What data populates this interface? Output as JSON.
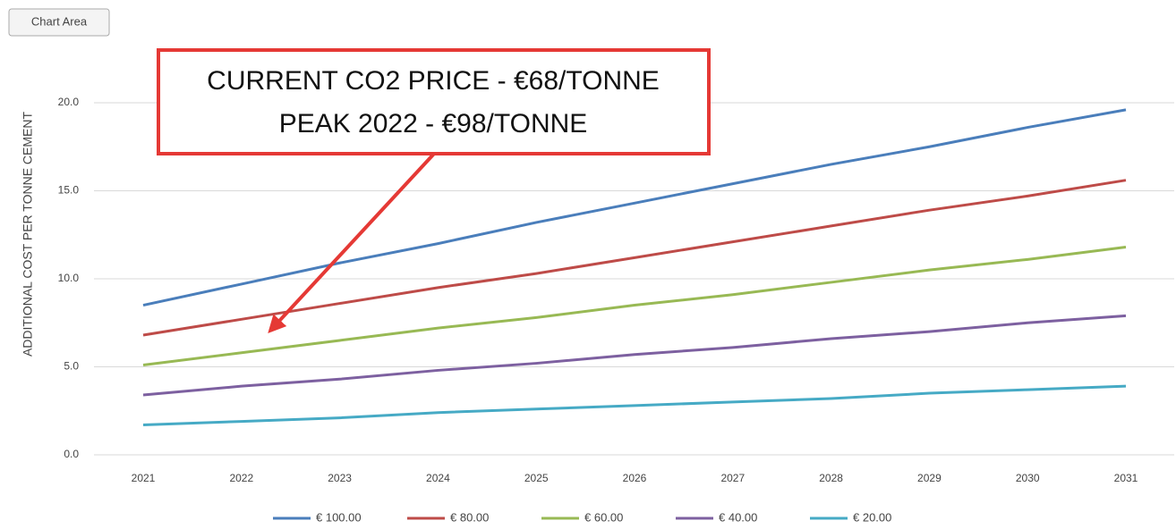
{
  "ui_label": "Chart Area",
  "chart_data": {
    "type": "line",
    "y_label": "ADDITIONAL COST PER TONNE CEMENT",
    "annotation": [
      "CURRENT CO2 PRICE - €68/TONNE",
      "PEAK 2022 - €98/TONNE"
    ],
    "categories": [
      "2021",
      "2022",
      "2023",
      "2024",
      "2025",
      "2026",
      "2027",
      "2028",
      "2029",
      "2030",
      "2031"
    ],
    "series": [
      {
        "name": "€ 100.00",
        "color": "#4a7ebb",
        "values": [
          8.5,
          9.7,
          10.9,
          12.0,
          13.2,
          14.3,
          15.4,
          16.5,
          17.5,
          18.6,
          19.6
        ]
      },
      {
        "name": "€ 80.00",
        "color": "#be4b48",
        "values": [
          6.8,
          7.7,
          8.6,
          9.5,
          10.3,
          11.2,
          12.1,
          13.0,
          13.9,
          14.7,
          15.6
        ]
      },
      {
        "name": "€ 60.00",
        "color": "#98b954",
        "values": [
          5.1,
          5.8,
          6.5,
          7.2,
          7.8,
          8.5,
          9.1,
          9.8,
          10.5,
          11.1,
          11.8
        ]
      },
      {
        "name": "€ 40.00",
        "color": "#7d60a0",
        "values": [
          3.4,
          3.9,
          4.3,
          4.8,
          5.2,
          5.7,
          6.1,
          6.6,
          7.0,
          7.5,
          7.9
        ]
      },
      {
        "name": "€ 20.00",
        "color": "#46aac5",
        "values": [
          1.7,
          1.9,
          2.1,
          2.4,
          2.6,
          2.8,
          3.0,
          3.2,
          3.5,
          3.7,
          3.9
        ]
      }
    ],
    "ylim": [
      0,
      20
    ],
    "yticks": [
      {
        "value": 0,
        "label": "0.0"
      },
      {
        "value": 5,
        "label": "5.0"
      },
      {
        "value": 10,
        "label": "10.0"
      },
      {
        "value": 15,
        "label": "15.0"
      },
      {
        "value": 20,
        "label": "20.0"
      }
    ],
    "grid": true
  }
}
